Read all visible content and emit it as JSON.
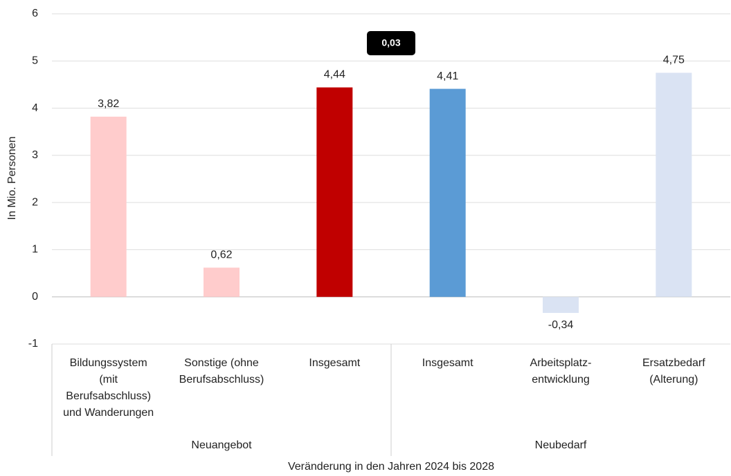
{
  "chart_data": {
    "type": "bar",
    "y_label": "In Mio. Personen",
    "x_label": "Veränderung in den Jahren 2024 bis 2028",
    "categories": [
      "Bildungssystem\n(mit\nBerufsabschluss)\nund Wanderungen",
      "Sonstige (ohne\nBerufsabschluss)",
      "Insgesamt",
      "Insgesamt",
      "Arbeitsplatz-\nentwicklung",
      "Ersatzbedarf\n(Alterung)"
    ],
    "values": [
      3.82,
      0.62,
      4.44,
      4.41,
      -0.34,
      4.75
    ],
    "value_labels": [
      "3,82",
      "0,62",
      "4,44",
      "4,41",
      "-0,34",
      "4,75"
    ],
    "colors": [
      "#ffcccc",
      "#ffcccc",
      "#c00000",
      "#5b9bd5",
      "#dae3f3",
      "#dae3f3"
    ],
    "groups": [
      {
        "label": "Neuangebot",
        "count": 3
      },
      {
        "label": "Neubedarf",
        "count": 3
      }
    ],
    "annotation": "0,03",
    "ylim": [
      -1,
      6
    ],
    "yticks": [
      -1,
      0,
      1,
      2,
      3,
      4,
      5,
      6
    ],
    "grid": true
  }
}
